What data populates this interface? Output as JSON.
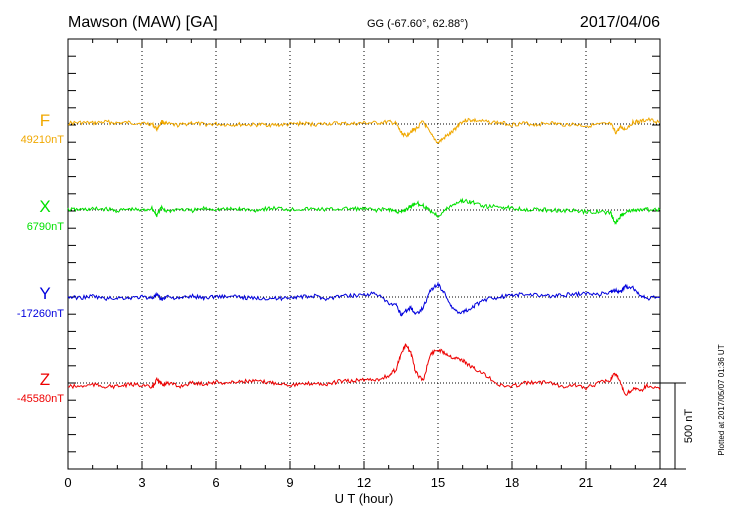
{
  "header": {
    "station": "Mawson (MAW)  [GA]",
    "coords": "GG (-67.60°,  62.88°)",
    "date": "2017/04/06"
  },
  "side_note": "Plotted at 2017/05/07 01:36 UT",
  "scale_label": "500 nT",
  "chart_data": {
    "type": "line",
    "xlabel": "U T (hour)",
    "xlim": [
      0,
      24
    ],
    "x_ticks": [
      "0",
      "3",
      "6",
      "9",
      "12",
      "15",
      "18",
      "21",
      "24"
    ],
    "x_ticks_values": [
      0,
      3,
      6,
      9,
      12,
      15,
      18,
      21,
      24
    ],
    "grid": true,
    "scale_bar_nT": 500,
    "series": [
      {
        "name": "F",
        "baseline_label": "49210nT",
        "color": "#f0a800",
        "x": [
          0,
          0.5,
          1,
          1.5,
          2,
          2.5,
          3,
          3.4,
          3.6,
          3.8,
          4,
          4.5,
          5,
          5.5,
          6,
          6.5,
          7,
          7.5,
          8,
          8.5,
          9,
          9.5,
          10,
          10.5,
          11,
          11.5,
          12,
          12.5,
          13,
          13.3,
          13.5,
          13.7,
          13.9,
          14.1,
          14.4,
          14.7,
          15,
          15.3,
          15.6,
          15.9,
          16.2,
          16.5,
          17,
          17.5,
          18,
          18.5,
          19,
          19.5,
          20,
          20.5,
          21,
          21.5,
          22,
          22.2,
          22.4,
          22.6,
          22.9,
          23.2,
          23.5,
          24
        ],
        "y": [
          5,
          8,
          5,
          12,
          6,
          8,
          4,
          0,
          -30,
          14,
          0,
          -8,
          8,
          -3,
          0,
          -4,
          -3,
          -5,
          -4,
          -6,
          -2,
          4,
          -3,
          2,
          4,
          0,
          6,
          6,
          12,
          2,
          -50,
          -70,
          -40,
          -30,
          15,
          -60,
          -110,
          -75,
          -45,
          8,
          25,
          20,
          12,
          8,
          -3,
          4,
          -4,
          8,
          -3,
          -2,
          -10,
          -4,
          0,
          -50,
          -20,
          -30,
          10,
          14,
          25,
          10
        ]
      },
      {
        "name": "X",
        "baseline_label": "6790nT",
        "color": "#00e000",
        "x": [
          0,
          0.5,
          1,
          1.5,
          2,
          2.5,
          3,
          3.4,
          3.6,
          3.8,
          4,
          4.5,
          5,
          5.5,
          6,
          6.5,
          7,
          7.5,
          8,
          8.5,
          9,
          9.5,
          10,
          10.5,
          11,
          11.5,
          12,
          12.5,
          13,
          13.3,
          13.5,
          13.7,
          13.9,
          14.1,
          14.4,
          14.7,
          15,
          15.3,
          15.6,
          15.9,
          16.2,
          16.5,
          17,
          17.5,
          18,
          18.5,
          19,
          19.5,
          20,
          20.5,
          21,
          21.5,
          22,
          22.2,
          22.4,
          22.6,
          22.9,
          23.2,
          23.5,
          24
        ],
        "y": [
          3,
          2,
          5,
          6,
          -5,
          5,
          -3,
          10,
          -30,
          15,
          -8,
          6,
          -5,
          8,
          5,
          4,
          6,
          -3,
          8,
          10,
          3,
          6,
          5,
          3,
          6,
          8,
          5,
          0,
          5,
          -8,
          -15,
          5,
          20,
          42,
          25,
          -5,
          -35,
          0,
          30,
          52,
          50,
          40,
          18,
          20,
          10,
          5,
          2,
          0,
          -2,
          -5,
          -12,
          -8,
          -20,
          -80,
          -35,
          -10,
          -5,
          0,
          2,
          0
        ]
      },
      {
        "name": "Y",
        "baseline_label": "-17260nT",
        "color": "#0000dd",
        "x": [
          0,
          0.5,
          1,
          1.5,
          2,
          2.5,
          3,
          3.4,
          3.6,
          3.8,
          4,
          4.5,
          5,
          5.5,
          6,
          6.5,
          7,
          7.5,
          8,
          8.5,
          9,
          9.5,
          10,
          10.5,
          11,
          11.5,
          12,
          12.5,
          13,
          13.3,
          13.5,
          13.7,
          13.9,
          14.1,
          14.4,
          14.7,
          15,
          15.3,
          15.6,
          15.9,
          16.2,
          16.5,
          17,
          17.5,
          18,
          18.5,
          19,
          19.5,
          20,
          20.5,
          21,
          21.5,
          22,
          22.2,
          22.4,
          22.6,
          22.9,
          23.2,
          23.5,
          24
        ],
        "y": [
          0,
          -5,
          5,
          -10,
          -5,
          -5,
          0,
          -5,
          10,
          -15,
          5,
          -10,
          5,
          -5,
          5,
          2,
          0,
          -8,
          -5,
          -10,
          0,
          0,
          5,
          -10,
          5,
          8,
          15,
          20,
          -40,
          -50,
          -100,
          -80,
          -60,
          -100,
          -60,
          40,
          75,
          15,
          -70,
          -90,
          -75,
          -50,
          -10,
          0,
          10,
          15,
          15,
          5,
          10,
          15,
          20,
          15,
          30,
          40,
          30,
          60,
          55,
          5,
          -10,
          0
        ]
      },
      {
        "name": "Z",
        "baseline_label": "-45580nT",
        "color": "#ee0000",
        "x": [
          0,
          0.5,
          1,
          1.5,
          2,
          2.5,
          3,
          3.4,
          3.6,
          3.8,
          4,
          4.5,
          5,
          5.5,
          6,
          6.5,
          7,
          7.5,
          8,
          8.5,
          9,
          9.5,
          10,
          10.5,
          11,
          11.5,
          12,
          12.5,
          13,
          13.3,
          13.5,
          13.7,
          13.9,
          14.1,
          14.4,
          14.7,
          15,
          15.3,
          15.6,
          15.9,
          16.2,
          16.5,
          17,
          17.5,
          18,
          18.5,
          19,
          19.5,
          20,
          20.5,
          21,
          21.5,
          22,
          22.2,
          22.4,
          22.6,
          22.9,
          23.2,
          23.5,
          24
        ],
        "y": [
          -20,
          -20,
          -10,
          -20,
          -20,
          -10,
          -10,
          -30,
          20,
          -10,
          0,
          -20,
          0,
          -5,
          5,
          0,
          10,
          10,
          5,
          0,
          -10,
          -10,
          0,
          -10,
          10,
          10,
          20,
          20,
          40,
          80,
          170,
          220,
          175,
          60,
          15,
          170,
          195,
          175,
          150,
          140,
          110,
          80,
          40,
          -15,
          -20,
          0,
          0,
          10,
          -20,
          -10,
          -30,
          0,
          20,
          60,
          -5,
          -70,
          -35,
          -45,
          -15,
          -40
        ]
      }
    ]
  }
}
